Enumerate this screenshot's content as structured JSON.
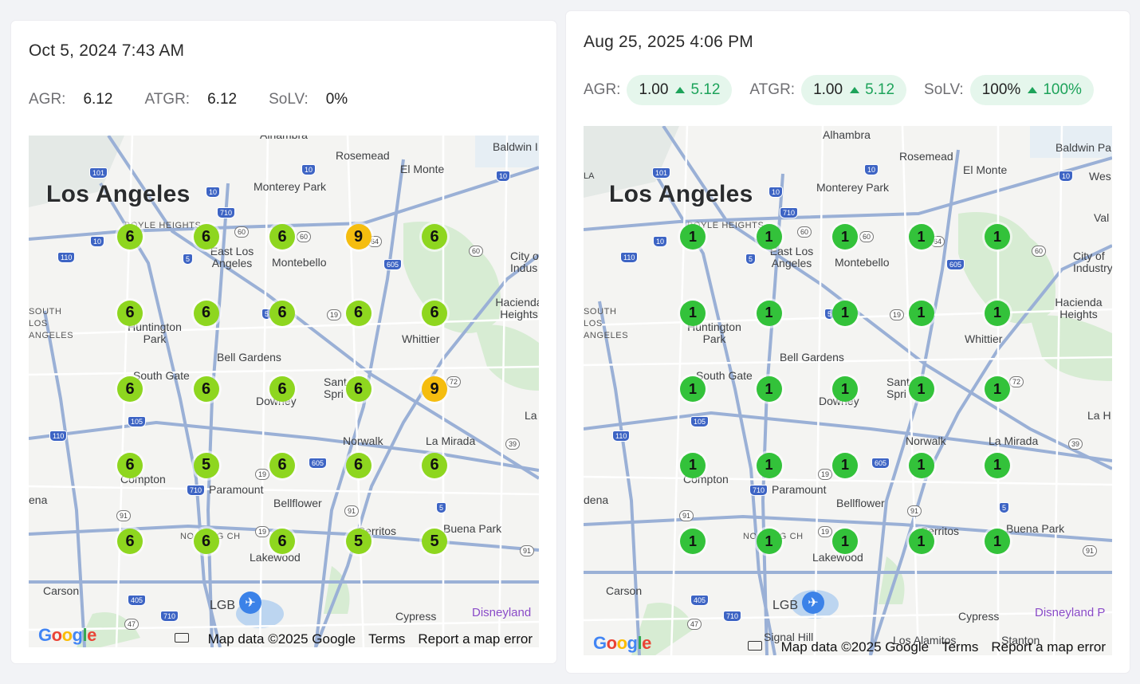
{
  "left": {
    "timestamp": "Oct 5, 2024 7:43 AM",
    "metrics": [
      {
        "label": "AGR:",
        "value": "6.12"
      },
      {
        "label": "ATGR:",
        "value": "6.12"
      },
      {
        "label": "SoLV:",
        "value": "0%"
      }
    ],
    "grid": [
      [
        "6",
        "6",
        "6",
        "9",
        "6"
      ],
      [
        "6",
        "6",
        "6",
        "6",
        "6"
      ],
      [
        "6",
        "6",
        "6",
        "6",
        "9"
      ],
      [
        "6",
        "5",
        "6",
        "6",
        "6"
      ],
      [
        "6",
        "6",
        "6",
        "5",
        "5"
      ]
    ],
    "footer": {
      "keyboard": "",
      "map_data": "Map data ©2025 Google",
      "terms": "Terms",
      "report": "Report a map error"
    }
  },
  "right": {
    "timestamp": "Aug 25, 2025 4:06 PM",
    "metrics": [
      {
        "label": "AGR:",
        "value": "1.00",
        "delta": "5.12"
      },
      {
        "label": "ATGR:",
        "value": "1.00",
        "delta": "5.12"
      },
      {
        "label": "SoLV:",
        "value": "100%",
        "delta": "100%"
      }
    ],
    "grid": [
      [
        "1",
        "1",
        "1",
        "1",
        "1"
      ],
      [
        "1",
        "1",
        "1",
        "1",
        "1"
      ],
      [
        "1",
        "1",
        "1",
        "1",
        "1"
      ],
      [
        "1",
        "1",
        "1",
        "1",
        "1"
      ],
      [
        "1",
        "1",
        "1",
        "1",
        "1"
      ]
    ],
    "footer": {
      "map_data": "Map data ©2025 Google",
      "terms": "Terms",
      "report": "Report a map error"
    }
  },
  "map_places": {
    "los_angeles": "Los Angeles",
    "alhambra": "Alhambra",
    "rosemead": "Rosemead",
    "baldwin_park_l": "Baldwin I",
    "baldwin_park_r": "Baldwin Pa",
    "el_monte": "El Monte",
    "west_r": "Wes",
    "monterey_park": "Monterey Park",
    "boyle_heights": "BOYLE HEIGHTS",
    "east_los_angeles": "East Los Angeles",
    "montebello": "Montebello",
    "city_of_industry_l": "City o Indus",
    "city_of_industry_r": "City of Industry",
    "val_r": "Val",
    "south_los_angeles": "SOUTH LOS ANGELES",
    "huntington_park": "Huntington Park",
    "hacienda_heights": "Hacienda Heights",
    "whittier": "Whittier",
    "bell_gardens": "Bell Gardens",
    "south_gate": "South Gate",
    "downey": "Downey",
    "santa_fe_springs": "Sant Spri",
    "la_habra_l": "La",
    "la_habra_r": "La H",
    "norwalk": "Norwalk",
    "la_mirada": "La Mirada",
    "compton": "Compton",
    "paramount": "Paramount",
    "bellflower": "Bellflower",
    "gardena_l": "ena",
    "gardena_r": "dena",
    "north_long_beach": "NO LONG CH",
    "cerritos": "Cerritos",
    "buena_park": "Buena Park",
    "lakewood": "Lakewood",
    "carson": "Carson",
    "lgb": "LGB",
    "cypress": "Cypress",
    "disneyland_l": "Disneyland",
    "disneyland_r": "Disneyland P",
    "signal_hill": "Signal Hill",
    "los_alamitos": "Los Alamitos",
    "stanton": "Stanton",
    "la_left_r": "LA"
  },
  "google_logo": "Google",
  "colors": {
    "lime": "#8ed61f",
    "amber": "#f5bd0f",
    "green": "#33c23a",
    "pill_bg": "#e5f6ec",
    "pill_up": "#1da35a"
  }
}
